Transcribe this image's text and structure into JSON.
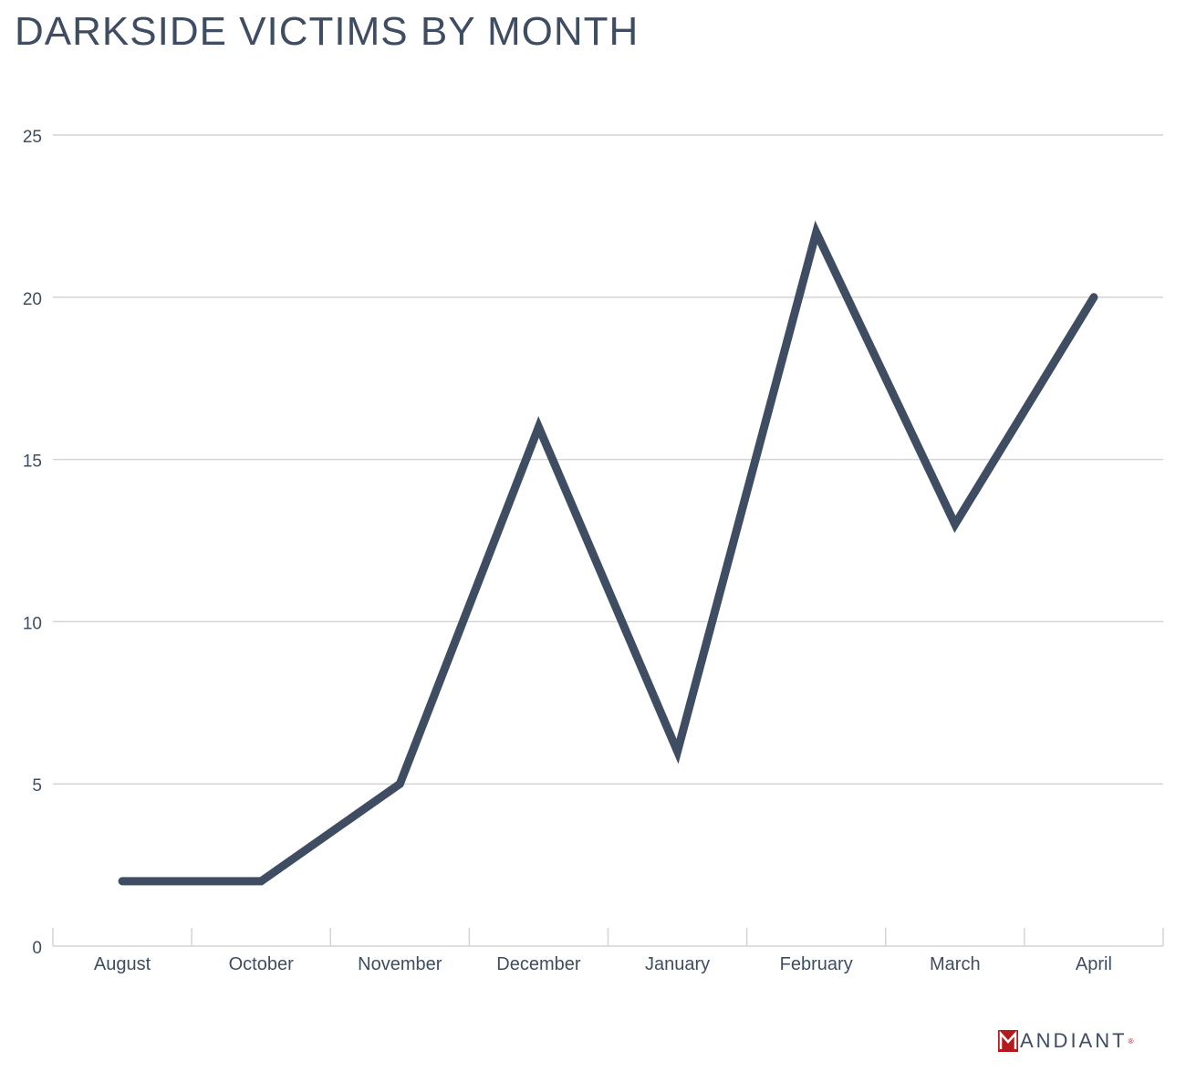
{
  "chart_data": {
    "type": "line",
    "title": "DARKSIDE VICTIMS BY MONTH",
    "categories": [
      "August",
      "October",
      "November",
      "December",
      "January",
      "February",
      "March",
      "April"
    ],
    "series": [
      {
        "values": [
          2,
          2,
          5,
          16,
          6,
          22,
          13,
          20
        ]
      }
    ],
    "ylim": [
      0,
      25
    ],
    "yticks": [
      0,
      5,
      10,
      15,
      20,
      25
    ],
    "grid": true,
    "legend": "none",
    "line_color": "#3f4d62",
    "grid_color": "#d4d4d4",
    "text_color": "#3f4d62"
  },
  "branding": {
    "logo_text": "ANDIANT",
    "logo_icon": "mandiant-m-icon",
    "logo_color": "#b31b1b"
  }
}
